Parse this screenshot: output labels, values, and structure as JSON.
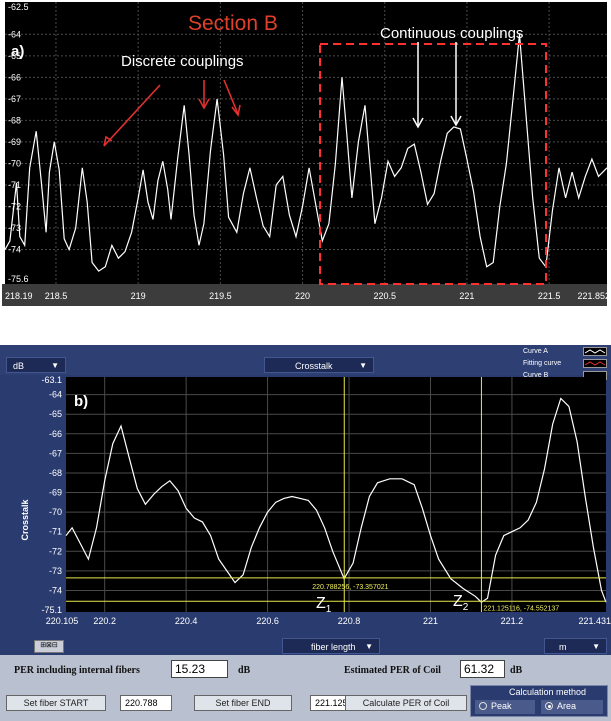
{
  "panel_a": {
    "title": "Section B",
    "panel_label": "a)",
    "annotation_discrete": "Discrete couplings",
    "annotation_continuous": "Continuous couplings",
    "y_ticks": [
      "-62.5",
      "-64",
      "-65",
      "-66",
      "-67",
      "-68",
      "-69",
      "-70",
      "-71",
      "-72",
      "-73",
      "-74",
      "-75.6"
    ],
    "x_ticks": [
      "218.19",
      "218.5",
      "219",
      "219.5",
      "220",
      "220.5",
      "221",
      "221.5",
      "221.852"
    ],
    "colors": {
      "background": "#000000",
      "trace": "#ffffff",
      "grid": "#4a4a4a",
      "title": "#e0402a",
      "box": "#ff3030",
      "arrow_red": "#e03030"
    }
  },
  "panel_b": {
    "y_unit_dropdown": "dB",
    "mode_dropdown": "Crosstalk",
    "legend": [
      "Curve A",
      "Fitting curve",
      "Curve B"
    ],
    "panel_label": "b)",
    "y_axis_label": "Crosstalk",
    "y_ticks": [
      "-63.1",
      "-64",
      "-65",
      "-66",
      "-67",
      "-68",
      "-69",
      "-70",
      "-71",
      "-72",
      "-73",
      "-74",
      "-75.1"
    ],
    "x_ticks": [
      "220.105",
      "220.2",
      "220.4",
      "220.6",
      "220.8",
      "221",
      "221.2",
      "221.431"
    ],
    "cursor1_readout": "220.788256, -73.357021",
    "cursor2_readout": "221.125116, -74.552137",
    "z1_label": "Z",
    "z1_sub": "1",
    "z2_label": "Z",
    "z2_sub": "2",
    "x_axis_dropdown": "fiber length",
    "x_unit_dropdown": "m",
    "per_label": "PER including  internal fibers",
    "per_value": "15.23",
    "per_unit": "dB",
    "est_label": "Estimated PER of Coil",
    "est_value": "61.32",
    "est_unit": "dB",
    "set_start_label": "Set fiber START",
    "start_value": "220.788",
    "set_end_label": "Set fiber END",
    "end_value": "221.125",
    "calc_label": "Calculate  PER of Coil",
    "calc_method_label": "Calculation method",
    "radio_peak": "Peak",
    "radio_area": "Area",
    "selected_method": "Area",
    "colors": {
      "plot_bg": "#000000",
      "trace": "#ffffff",
      "cursor": "#e8e84a",
      "grid": "#4a4a4a",
      "chrome": "#2a3b6f",
      "bottom": "#b9c0cf"
    }
  }
}
